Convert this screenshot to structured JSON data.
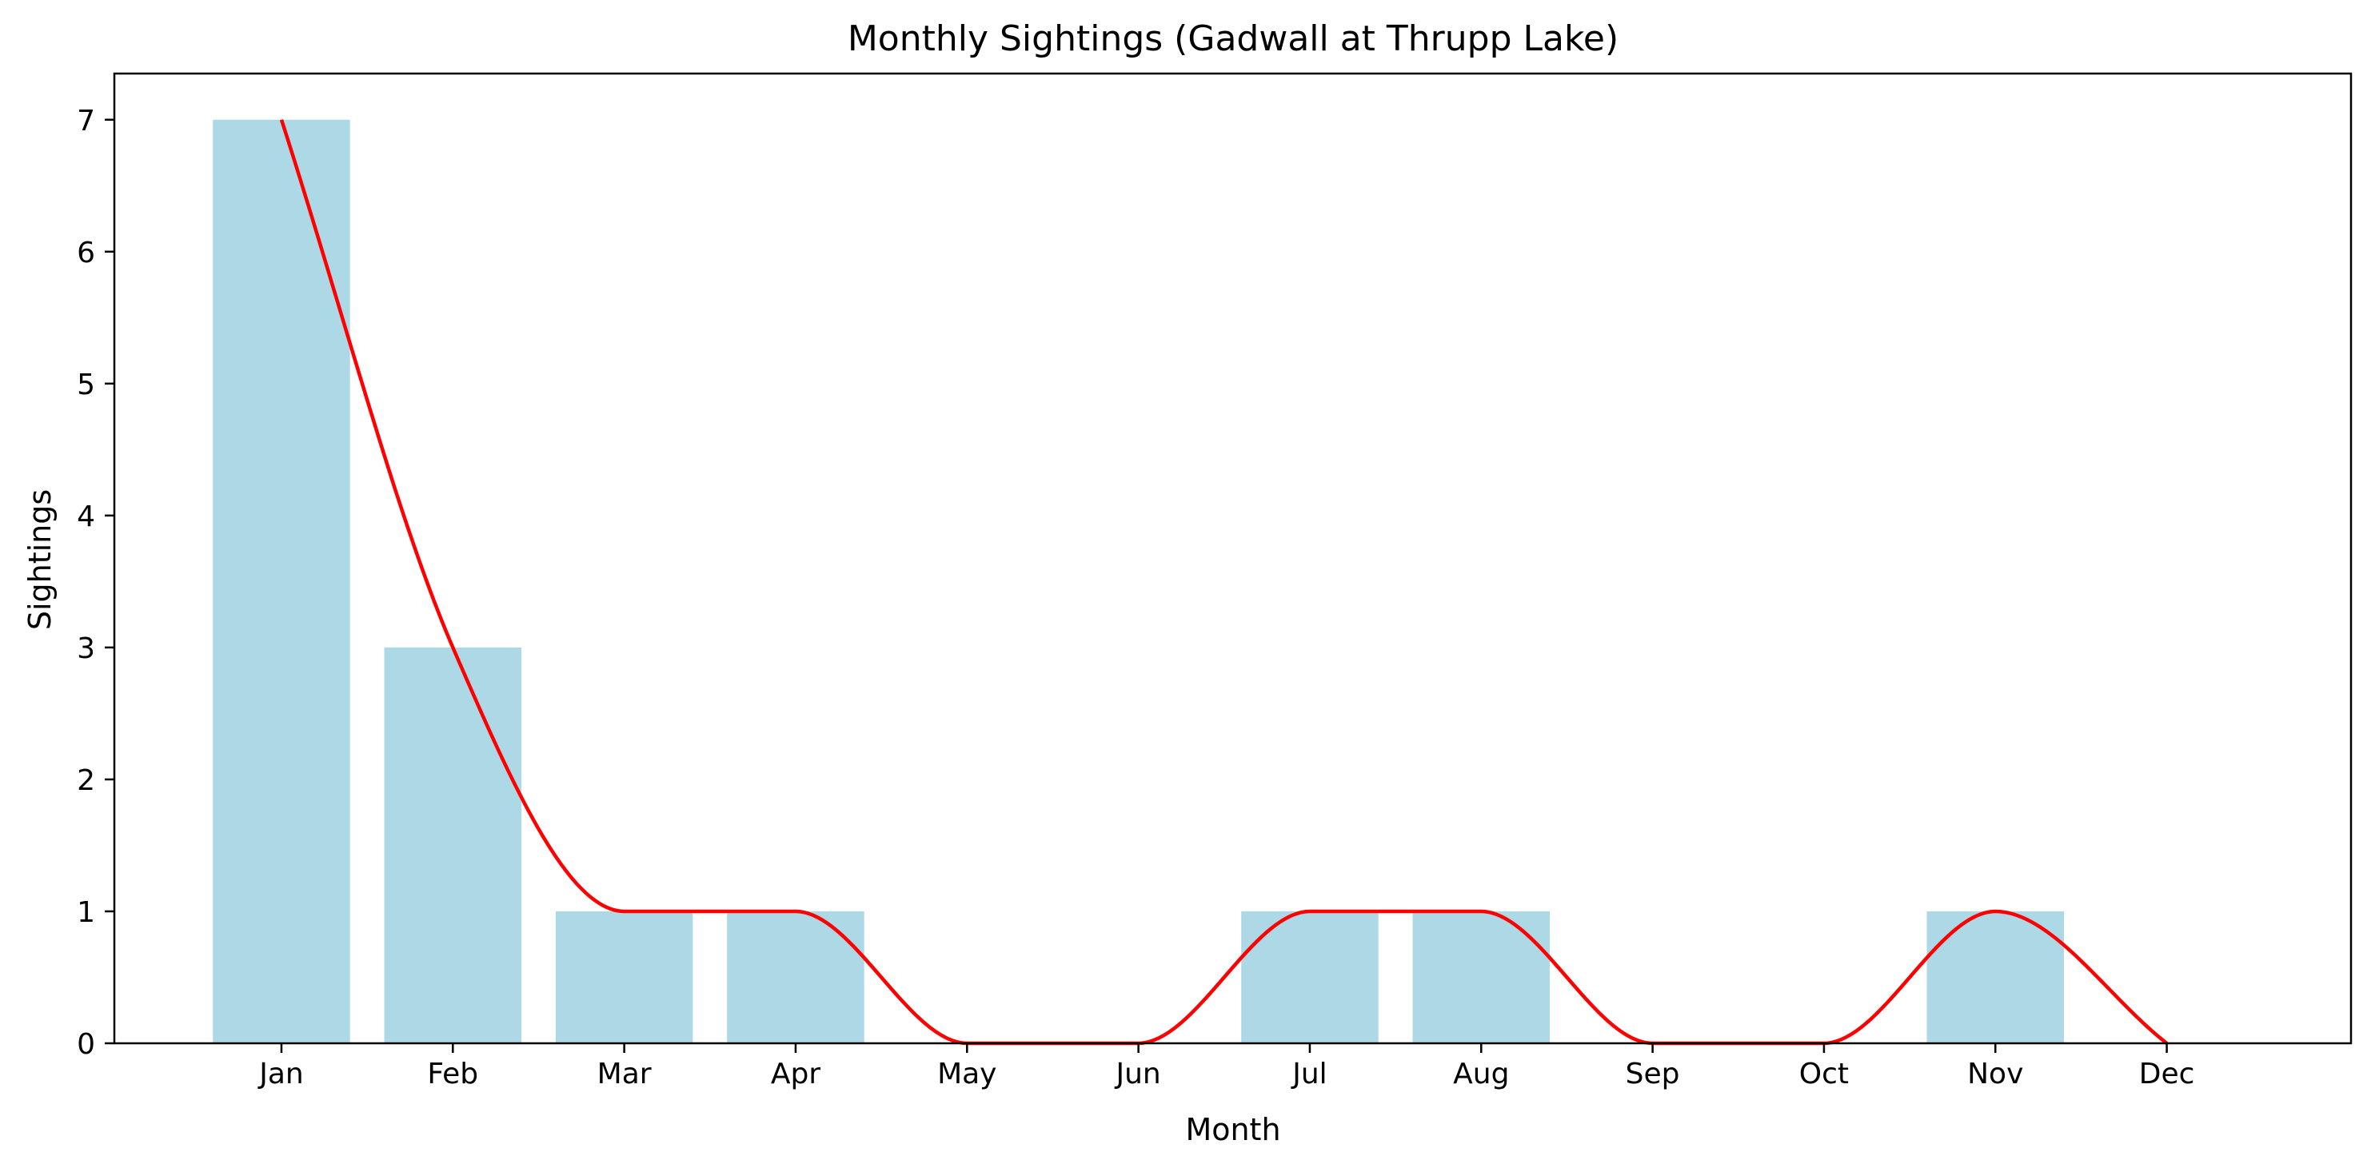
{
  "chart_data": {
    "type": "bar",
    "title": "Monthly Sightings (Gadwall at Thrupp Lake)",
    "xlabel": "Month",
    "ylabel": "Sightings",
    "categories": [
      "Jan",
      "Feb",
      "Mar",
      "Apr",
      "May",
      "Jun",
      "Jul",
      "Aug",
      "Sep",
      "Oct",
      "Nov",
      "Dec"
    ],
    "values": [
      7,
      3,
      1,
      1,
      0,
      0,
      1,
      1,
      0,
      0,
      1,
      0
    ],
    "ylim": [
      0,
      7.35
    ],
    "yticks": [
      0,
      1,
      2,
      3,
      4,
      5,
      6,
      7
    ],
    "grid": false,
    "bar_color": "#add8e6",
    "trend_color": "#ff0000",
    "trend_line": "smoothed curve through monthly values"
  }
}
